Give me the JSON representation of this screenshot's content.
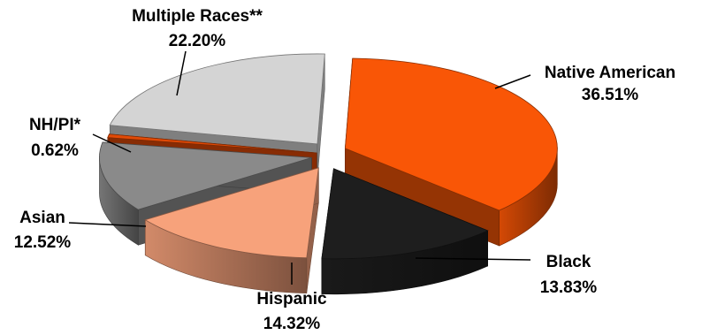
{
  "chart_data": {
    "type": "pie",
    "style": "3d-exploded",
    "slices": [
      {
        "name": "Native American",
        "value": 36.51,
        "label": "36.51%",
        "color": "#f95606"
      },
      {
        "name": "Black",
        "value": 13.83,
        "label": "13.83%",
        "color": "#1e1e1e"
      },
      {
        "name": "Hispanic",
        "value": 14.32,
        "label": "14.32%",
        "color": "#f7a27b"
      },
      {
        "name": "Asian",
        "value": 12.52,
        "label": "12.52%",
        "color": "#8a8a8a"
      },
      {
        "name": "NH/PI*",
        "value": 0.62,
        "label": "0.62%",
        "color": "#e24a06"
      },
      {
        "name": "Multiple Races**",
        "value": 22.2,
        "label": "22.20%",
        "color": "#d4d4d4"
      }
    ],
    "legend": "none"
  }
}
